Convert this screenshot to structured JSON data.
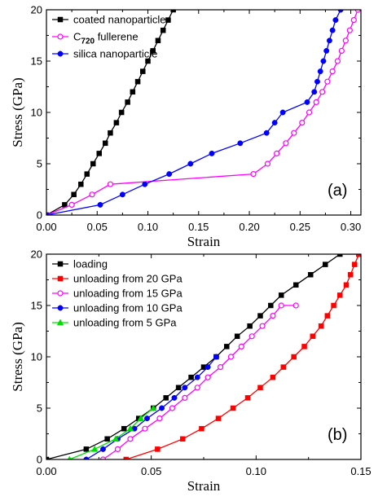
{
  "chart_data": [
    {
      "type": "line",
      "panel_label": "(a)",
      "xlabel": "Strain",
      "ylabel": "Stress (GPa)",
      "xlim": [
        0,
        0.31
      ],
      "ylim": [
        0,
        20
      ],
      "xticks": [
        0.0,
        0.05,
        0.1,
        0.15,
        0.2,
        0.25,
        0.3
      ],
      "xtick_labels": [
        "0.00",
        "0.05",
        "0.10",
        "0.15",
        "0.20",
        "0.25",
        "0.30"
      ],
      "yticks": [
        0,
        5,
        10,
        15,
        20
      ],
      "ytick_labels": [
        "0",
        "5",
        "10",
        "15",
        "20"
      ],
      "legend_position": "top-left",
      "series": [
        {
          "name": "coated nanoparticle",
          "color": "#000000",
          "marker": "square-filled",
          "points": [
            [
              0,
              0
            ],
            [
              0.018,
              1
            ],
            [
              0.027,
              2
            ],
            [
              0.034,
              3
            ],
            [
              0.04,
              4
            ],
            [
              0.046,
              5
            ],
            [
              0.052,
              6
            ],
            [
              0.058,
              7
            ],
            [
              0.063,
              8
            ],
            [
              0.069,
              9
            ],
            [
              0.074,
              10
            ],
            [
              0.08,
              11
            ],
            [
              0.085,
              12
            ],
            [
              0.09,
              13
            ],
            [
              0.095,
              14
            ],
            [
              0.1,
              15
            ],
            [
              0.105,
              16
            ],
            [
              0.11,
              17
            ],
            [
              0.115,
              18
            ],
            [
              0.12,
              19
            ],
            [
              0.125,
              20
            ]
          ]
        },
        {
          "name": "C720 fullerene",
          "name_main": "C",
          "name_sub": "720",
          "name_rest": " fullerene",
          "color": "#ff00ff",
          "marker": "circle-open",
          "points": [
            [
              0,
              0
            ],
            [
              0.025,
              1
            ],
            [
              0.045,
              2
            ],
            [
              0.063,
              3
            ],
            [
              0.204,
              4
            ],
            [
              0.218,
              5
            ],
            [
              0.227,
              6
            ],
            [
              0.236,
              7
            ],
            [
              0.244,
              8
            ],
            [
              0.252,
              9
            ],
            [
              0.259,
              10
            ],
            [
              0.266,
              11
            ],
            [
              0.272,
              12
            ],
            [
              0.277,
              13
            ],
            [
              0.282,
              14
            ],
            [
              0.287,
              15
            ],
            [
              0.291,
              16
            ],
            [
              0.295,
              17
            ],
            [
              0.299,
              18
            ],
            [
              0.303,
              19
            ],
            [
              0.307,
              20
            ]
          ]
        },
        {
          "name": "silica nanoparticle",
          "color": "#0000ff",
          "marker": "circle-filled",
          "points": [
            [
              0,
              0
            ],
            [
              0.053,
              1
            ],
            [
              0.075,
              2
            ],
            [
              0.097,
              3
            ],
            [
              0.121,
              4
            ],
            [
              0.142,
              5
            ],
            [
              0.163,
              6
            ],
            [
              0.191,
              7
            ],
            [
              0.217,
              8
            ],
            [
              0.225,
              9
            ],
            [
              0.233,
              10
            ],
            [
              0.257,
              11
            ],
            [
              0.264,
              12
            ],
            [
              0.267,
              13
            ],
            [
              0.27,
              14
            ],
            [
              0.273,
              15
            ],
            [
              0.276,
              16
            ],
            [
              0.279,
              17
            ],
            [
              0.282,
              18
            ],
            [
              0.285,
              19
            ],
            [
              0.29,
              20
            ]
          ]
        }
      ]
    },
    {
      "type": "line",
      "panel_label": "(b)",
      "xlabel": "Strain",
      "ylabel": "Stress (GPa)",
      "xlim": [
        0,
        0.15
      ],
      "ylim": [
        0,
        20
      ],
      "xticks": [
        0.0,
        0.05,
        0.1,
        0.15
      ],
      "xtick_labels": [
        "0.00",
        "0.05",
        "0.10",
        "0.15"
      ],
      "yticks": [
        0,
        5,
        10,
        15,
        20
      ],
      "ytick_labels": [
        "0",
        "5",
        "10",
        "15",
        "20"
      ],
      "legend_position": "top-left",
      "series": [
        {
          "name": "loading",
          "color": "#000000",
          "marker": "square-filled",
          "points": [
            [
              0,
              0
            ],
            [
              0.019,
              1
            ],
            [
              0.029,
              2
            ],
            [
              0.037,
              3
            ],
            [
              0.044,
              4
            ],
            [
              0.051,
              5
            ],
            [
              0.057,
              6
            ],
            [
              0.063,
              7
            ],
            [
              0.069,
              8
            ],
            [
              0.075,
              9
            ],
            [
              0.081,
              10
            ],
            [
              0.086,
              11
            ],
            [
              0.091,
              12
            ],
            [
              0.097,
              13
            ],
            [
              0.102,
              14
            ],
            [
              0.107,
              15
            ],
            [
              0.112,
              16
            ],
            [
              0.119,
              17
            ],
            [
              0.126,
              18
            ],
            [
              0.133,
              19
            ],
            [
              0.14,
              20
            ],
            [
              0.149,
              20
            ]
          ]
        },
        {
          "name": "unloading from 20 GPa",
          "color": "#ff0000",
          "marker": "square-filled",
          "points": [
            [
              0.038,
              0
            ],
            [
              0.053,
              1
            ],
            [
              0.065,
              2
            ],
            [
              0.074,
              3
            ],
            [
              0.082,
              4
            ],
            [
              0.089,
              5
            ],
            [
              0.096,
              6
            ],
            [
              0.102,
              7
            ],
            [
              0.108,
              8
            ],
            [
              0.113,
              9
            ],
            [
              0.118,
              10
            ],
            [
              0.123,
              11
            ],
            [
              0.127,
              12
            ],
            [
              0.131,
              13
            ],
            [
              0.134,
              14
            ],
            [
              0.137,
              15
            ],
            [
              0.14,
              16
            ],
            [
              0.143,
              17
            ],
            [
              0.145,
              18
            ],
            [
              0.147,
              19
            ],
            [
              0.149,
              20
            ]
          ]
        },
        {
          "name": "unloading from 15 GPa",
          "color": "#ff00ff",
          "marker": "circle-open",
          "points": [
            [
              0.027,
              0
            ],
            [
              0.034,
              1
            ],
            [
              0.04,
              2
            ],
            [
              0.047,
              3
            ],
            [
              0.054,
              4
            ],
            [
              0.06,
              5
            ],
            [
              0.066,
              6
            ],
            [
              0.072,
              7
            ],
            [
              0.077,
              8
            ],
            [
              0.083,
              9
            ],
            [
              0.088,
              10
            ],
            [
              0.093,
              11
            ],
            [
              0.098,
              12
            ],
            [
              0.103,
              13
            ],
            [
              0.108,
              14
            ],
            [
              0.112,
              15
            ],
            [
              0.119,
              15
            ]
          ]
        },
        {
          "name": "unloading from 10 GPa",
          "color": "#0000ff",
          "marker": "circle-filled",
          "points": [
            [
              0.019,
              0
            ],
            [
              0.027,
              1
            ],
            [
              0.034,
              2
            ],
            [
              0.042,
              3
            ],
            [
              0.048,
              4
            ],
            [
              0.055,
              5
            ],
            [
              0.061,
              6
            ],
            [
              0.066,
              7
            ],
            [
              0.072,
              8
            ],
            [
              0.077,
              9
            ],
            [
              0.081,
              10
            ]
          ]
        },
        {
          "name": "unloading from 5 GPa",
          "color": "#00dd00",
          "marker": "triangle-filled",
          "points": [
            [
              0.011,
              0
            ],
            [
              0.023,
              1
            ],
            [
              0.033,
              2
            ],
            [
              0.04,
              3
            ],
            [
              0.045,
              4
            ],
            [
              0.051,
              5
            ]
          ]
        }
      ]
    }
  ]
}
